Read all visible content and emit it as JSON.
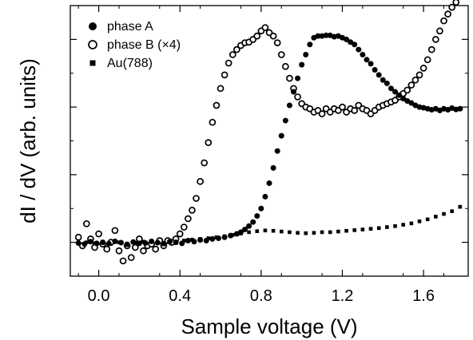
{
  "chart_data": {
    "type": "scatter",
    "title": "",
    "xlabel": "Sample voltage (V)",
    "ylabel": "dI / dV (arb. units)",
    "xlim": [
      -0.14,
      1.82
    ],
    "ylim": [
      0,
      8
    ],
    "xticks": [
      0.0,
      0.4,
      0.8,
      1.2,
      1.6
    ],
    "xtick_labels": [
      "0.0",
      "0.4",
      "0.8",
      "1.2",
      "1.6"
    ],
    "yticks": [
      1,
      3,
      5,
      7
    ],
    "ytick_labels_shown": false,
    "grid": false,
    "legend_position": "top-left",
    "series": [
      {
        "name": "phase A",
        "marker": "filled-circle",
        "color": "#000000",
        "x": [
          -0.1,
          -0.07,
          -0.04,
          -0.01,
          0.02,
          0.05,
          0.08,
          0.11,
          0.14,
          0.17,
          0.2,
          0.23,
          0.26,
          0.29,
          0.32,
          0.35,
          0.38,
          0.41,
          0.44,
          0.47,
          0.5,
          0.53,
          0.56,
          0.59,
          0.62,
          0.65,
          0.68,
          0.7,
          0.72,
          0.74,
          0.76,
          0.78,
          0.8,
          0.82,
          0.84,
          0.86,
          0.88,
          0.9,
          0.92,
          0.94,
          0.96,
          0.98,
          1.0,
          1.02,
          1.04,
          1.06,
          1.08,
          1.1,
          1.12,
          1.14,
          1.16,
          1.18,
          1.2,
          1.22,
          1.24,
          1.26,
          1.28,
          1.3,
          1.32,
          1.34,
          1.36,
          1.38,
          1.4,
          1.42,
          1.44,
          1.46,
          1.48,
          1.5,
          1.52,
          1.54,
          1.56,
          1.58,
          1.6,
          1.62,
          1.64,
          1.66,
          1.68,
          1.7,
          1.72,
          1.74,
          1.76,
          1.78
        ],
        "y": [
          0.98,
          0.95,
          1.02,
          0.97,
          1.0,
          0.96,
          1.03,
          0.99,
          0.94,
          1.01,
          0.97,
          0.98,
          1.03,
          0.99,
          0.96,
          1.02,
          1.0,
          0.97,
          1.05,
          1.02,
          1.07,
          1.05,
          1.1,
          1.12,
          1.15,
          1.2,
          1.25,
          1.3,
          1.38,
          1.48,
          1.6,
          1.78,
          2.0,
          2.35,
          2.75,
          3.2,
          3.7,
          4.15,
          4.6,
          5.05,
          5.45,
          5.85,
          6.25,
          6.55,
          6.85,
          7.05,
          7.1,
          7.1,
          7.12,
          7.12,
          7.08,
          7.1,
          7.05,
          7.0,
          6.92,
          6.85,
          6.7,
          6.55,
          6.4,
          6.28,
          6.1,
          5.95,
          5.8,
          5.7,
          5.55,
          5.45,
          5.35,
          5.25,
          5.18,
          5.12,
          5.05,
          5.0,
          4.98,
          4.95,
          4.92,
          4.95,
          4.9,
          4.95,
          4.92,
          4.97,
          4.93,
          4.95
        ]
      },
      {
        "name": "phase B (×4)",
        "marker": "open-circle",
        "color": "#000000",
        "x": [
          -0.1,
          -0.08,
          -0.06,
          -0.04,
          -0.02,
          0.0,
          0.02,
          0.04,
          0.06,
          0.08,
          0.1,
          0.12,
          0.14,
          0.16,
          0.18,
          0.2,
          0.22,
          0.24,
          0.26,
          0.28,
          0.3,
          0.32,
          0.34,
          0.36,
          0.38,
          0.4,
          0.42,
          0.44,
          0.46,
          0.48,
          0.5,
          0.52,
          0.54,
          0.56,
          0.58,
          0.6,
          0.62,
          0.64,
          0.66,
          0.68,
          0.7,
          0.72,
          0.74,
          0.76,
          0.78,
          0.8,
          0.82,
          0.84,
          0.86,
          0.88,
          0.9,
          0.92,
          0.94,
          0.96,
          0.98,
          1.0,
          1.02,
          1.04,
          1.06,
          1.08,
          1.1,
          1.12,
          1.14,
          1.16,
          1.18,
          1.2,
          1.22,
          1.24,
          1.26,
          1.28,
          1.3,
          1.32,
          1.34,
          1.36,
          1.38,
          1.4,
          1.42,
          1.44,
          1.46,
          1.48,
          1.5,
          1.52,
          1.54,
          1.56,
          1.58,
          1.6,
          1.62,
          1.64,
          1.66,
          1.68,
          1.7,
          1.72,
          1.74,
          1.76,
          1.78,
          1.8
        ],
        "y": [
          1.15,
          0.9,
          1.55,
          1.1,
          0.85,
          1.25,
          0.95,
          0.8,
          1.0,
          1.35,
          0.75,
          0.45,
          0.9,
          0.55,
          0.85,
          1.1,
          0.75,
          0.9,
          0.95,
          0.8,
          1.05,
          0.9,
          1.05,
          1.0,
          1.1,
          1.25,
          1.45,
          1.7,
          1.95,
          2.3,
          2.8,
          3.35,
          3.95,
          4.55,
          5.05,
          5.55,
          5.95,
          6.3,
          6.55,
          6.7,
          6.82,
          6.9,
          6.92,
          7.0,
          7.1,
          7.25,
          7.35,
          7.2,
          7.1,
          6.9,
          6.55,
          6.2,
          5.85,
          5.55,
          5.3,
          5.1,
          5.0,
          4.95,
          4.85,
          4.9,
          4.8,
          4.95,
          4.85,
          4.95,
          4.9,
          5.0,
          4.85,
          4.95,
          4.9,
          5.05,
          4.95,
          4.9,
          4.8,
          4.9,
          5.0,
          5.05,
          5.1,
          5.15,
          5.2,
          5.3,
          5.4,
          5.5,
          5.65,
          5.8,
          5.95,
          6.15,
          6.4,
          6.7,
          7.0,
          7.25,
          7.55,
          7.75,
          7.95,
          8.1,
          8.3,
          8.35
        ]
      },
      {
        "name": "Au(788)",
        "marker": "filled-square",
        "color": "#000000",
        "x": [
          -0.1,
          -0.06,
          -0.02,
          0.02,
          0.06,
          0.1,
          0.14,
          0.18,
          0.22,
          0.26,
          0.3,
          0.34,
          0.38,
          0.42,
          0.46,
          0.5,
          0.54,
          0.58,
          0.62,
          0.66,
          0.7,
          0.74,
          0.78,
          0.82,
          0.86,
          0.9,
          0.94,
          0.98,
          1.02,
          1.06,
          1.1,
          1.14,
          1.18,
          1.22,
          1.26,
          1.3,
          1.34,
          1.38,
          1.42,
          1.46,
          1.5,
          1.54,
          1.58,
          1.62,
          1.66,
          1.7,
          1.74,
          1.78
        ],
        "y": [
          0.98,
          1.0,
          0.97,
          1.01,
          0.98,
          1.0,
          0.96,
          0.99,
          1.02,
          0.97,
          1.0,
          1.01,
          1.03,
          1.05,
          1.08,
          1.1,
          1.12,
          1.15,
          1.18,
          1.22,
          1.26,
          1.3,
          1.33,
          1.35,
          1.34,
          1.32,
          1.3,
          1.28,
          1.27,
          1.28,
          1.3,
          1.3,
          1.32,
          1.34,
          1.36,
          1.38,
          1.4,
          1.42,
          1.45,
          1.48,
          1.52,
          1.56,
          1.62,
          1.68,
          1.76,
          1.84,
          1.92,
          2.05
        ]
      }
    ]
  }
}
